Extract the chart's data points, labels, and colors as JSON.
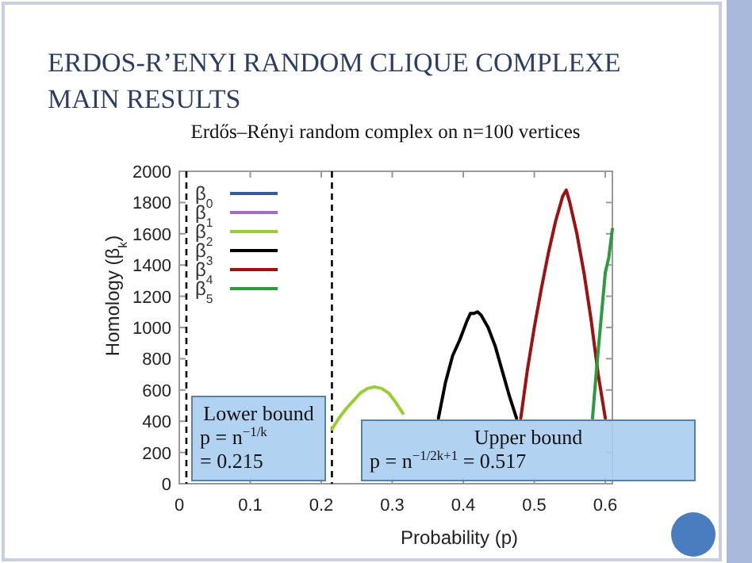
{
  "chart_data": {
    "type": "line",
    "title": "ERDOS-R’ENYI RANDOM CLIQUE COMPLEXE MAIN RESULTS",
    "subtitle": "Erdős–Rényi random complex on n=100 vertices",
    "xlabel": "Probability (p)",
    "ylabel": "Homology (β$_{k}$)",
    "xlim": [
      0,
      0.61
    ],
    "xticks": [
      0,
      0.1,
      0.2,
      0.3,
      0.4,
      0.5,
      0.6
    ],
    "ylim": [
      0,
      2000
    ],
    "yticks": [
      0,
      200,
      400,
      600,
      800,
      1000,
      1200,
      1400,
      1600,
      1800,
      2000
    ],
    "legend": "top left",
    "line_style": "solid",
    "ref_lines": [
      {
        "axis": "x",
        "value": 0.01,
        "line_style": "dashed",
        "color": "#000000"
      },
      {
        "axis": "x",
        "value": 0.215,
        "line_style": "dashed",
        "color": "#000000"
      }
    ],
    "annotations": [
      "Lower bound\np = n$^{−1/k}$\n= 0.215",
      "Upper bound\np = n$^{−1/2k+1}$ = 0.517"
    ],
    "series": [
      {
        "name": "β$_{0}$",
        "color": "#3a5a9c"
      },
      {
        "name": "β$_{1}$",
        "color": "#a070c0"
      },
      {
        "name": "β$_{2}$",
        "color": "#9acd32",
        "x": [
          0.215,
          0.225,
          0.235,
          0.245,
          0.255,
          0.265,
          0.275,
          0.285,
          0.295,
          0.305,
          0.315
        ],
        "values": [
          350,
          420,
          480,
          530,
          580,
          610,
          620,
          610,
          580,
          520,
          450
        ]
      },
      {
        "name": "β$_{3}$",
        "color": "#000000",
        "x": [
          0.365,
          0.375,
          0.385,
          0.395,
          0.405,
          0.41,
          0.415,
          0.42,
          0.425,
          0.435,
          0.445,
          0.455,
          0.465,
          0.475
        ],
        "values": [
          420,
          650,
          820,
          920,
          1040,
          1090,
          1090,
          1100,
          1080,
          1000,
          880,
          720,
          560,
          420
        ]
      },
      {
        "name": "β$_{4}$",
        "color": "#a01010",
        "x": [
          0.481,
          0.49,
          0.5,
          0.51,
          0.52,
          0.53,
          0.54,
          0.545,
          0.55,
          0.56,
          0.57,
          0.58,
          0.59,
          0.6
        ],
        "values": [
          420,
          720,
          1000,
          1250,
          1480,
          1680,
          1840,
          1880,
          1800,
          1600,
          1350,
          1050,
          700,
          420
        ]
      },
      {
        "name": "β$_{5}$",
        "color": "#2e9a3e",
        "x": [
          0.582,
          0.588,
          0.594,
          0.6,
          0.605,
          0.61
        ],
        "values": [
          420,
          750,
          1050,
          1350,
          1450,
          1630
        ]
      }
    ]
  }
}
